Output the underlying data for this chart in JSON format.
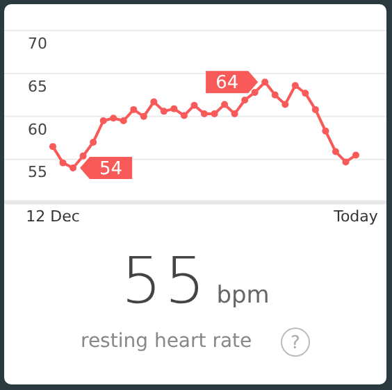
{
  "chart_data": {
    "type": "line",
    "categories": [
      "12 Dec",
      null,
      null,
      null,
      null,
      null,
      null,
      null,
      null,
      null,
      null,
      null,
      null,
      null,
      null,
      null,
      null,
      null,
      null,
      null,
      null,
      null,
      null,
      null,
      null,
      null,
      null,
      null,
      null,
      null,
      "Today"
    ],
    "values": [
      56.5,
      54.6,
      54,
      55.4,
      57,
      59.5,
      59.8,
      59.5,
      60.8,
      60,
      61.7,
      60.6,
      60.9,
      60.1,
      61.3,
      60.3,
      60.3,
      61.4,
      60.3,
      61.9,
      62.8,
      64,
      62.5,
      61.4,
      63.6,
      62.7,
      60.8,
      58.3,
      55.9,
      54.7,
      55.5
    ],
    "value_labels": [
      null,
      null,
      "54",
      null,
      null,
      null,
      null,
      null,
      null,
      null,
      null,
      null,
      null,
      null,
      null,
      null,
      null,
      null,
      null,
      null,
      null,
      "64",
      null,
      null,
      null,
      null,
      null,
      null,
      null,
      null,
      null
    ],
    "color": "#f85a5a",
    "marker": "circle",
    "ylim": [
      50,
      70
    ],
    "yticks": [
      {
        "value": 50,
        "label": null
      },
      55,
      60,
      65,
      70
    ],
    "grid": "y",
    "annotations": [
      "55",
      "bpm",
      "resting heart rate",
      "?"
    ]
  }
}
